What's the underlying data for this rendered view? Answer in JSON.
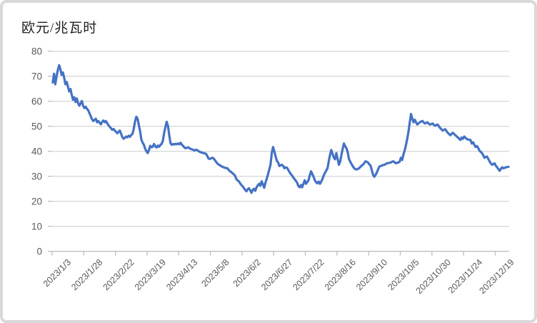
{
  "chart_data": {
    "type": "line",
    "title": "欧元/兆瓦时",
    "line_color": "#4472C4",
    "grid": true,
    "grid_color": "#d9d9d9",
    "axis_color": "#bfbfbf",
    "label_color": "#595959",
    "ylim": [
      0,
      80
    ],
    "y_ticks": [
      0,
      10,
      20,
      30,
      40,
      50,
      60,
      70,
      80
    ],
    "x_labels": [
      "2023/1/3",
      "2023/1/28",
      "2023/2/22",
      "2023/3/19",
      "2023/4/13",
      "2023/5/8",
      "2023/6/2",
      "2023/6/27",
      "2023/7/22",
      "2023/8/16",
      "2023/9/10",
      "2023/10/5",
      "2023/10/30",
      "2023/11/24",
      "2023/12/19"
    ],
    "x_label_interval_days": 25,
    "values": [
      67.5,
      71.0,
      66.8,
      70.0,
      72.5,
      74.4,
      72.9,
      70.6,
      71.5,
      69.5,
      66.8,
      67.7,
      65.8,
      63.9,
      64.9,
      62.5,
      60.6,
      61.6,
      59.7,
      61.1,
      59.2,
      58.2,
      59.2,
      60.1,
      58.2,
      57.3,
      57.8,
      57.0,
      56.4,
      55.2,
      54.0,
      52.8,
      52.1,
      52.6,
      53.0,
      51.6,
      52.1,
      51.4,
      50.8,
      51.8,
      52.3,
      51.6,
      52.1,
      51.2,
      50.4,
      49.8,
      49.2,
      48.6,
      48.9,
      48.3,
      47.8,
      47.2,
      47.8,
      48.3,
      47.0,
      45.6,
      45.0,
      45.4,
      45.9,
      45.6,
      46.2,
      45.8,
      46.5,
      47.0,
      49.0,
      51.9,
      53.8,
      53.0,
      50.5,
      48.0,
      44.6,
      43.4,
      42.6,
      41.0,
      40.0,
      39.3,
      40.5,
      42.2,
      41.6,
      41.8,
      42.9,
      42.0,
      41.5,
      42.3,
      41.8,
      42.5,
      43.0,
      44.2,
      47.4,
      49.8,
      51.8,
      50.2,
      46.4,
      43.2,
      42.6,
      42.9,
      42.7,
      43.0,
      42.8,
      43.1,
      42.8,
      43.4,
      42.6,
      42.1,
      41.5,
      41.2,
      41.4,
      41.6,
      41.2,
      40.9,
      40.8,
      40.5,
      40.3,
      40.6,
      40.5,
      40.1,
      39.8,
      39.6,
      39.4,
      39.3,
      39.2,
      39.0,
      38.2,
      37.1,
      36.9,
      37.2,
      37.4,
      37.2,
      36.5,
      35.8,
      35.1,
      34.7,
      34.4,
      34.1,
      33.8,
      33.6,
      33.4,
      33.3,
      33.2,
      32.5,
      32.0,
      31.7,
      31.2,
      30.8,
      30.2,
      28.9,
      28.3,
      28.0,
      27.2,
      26.5,
      26.0,
      25.3,
      24.5,
      24.0,
      24.8,
      25.2,
      24.3,
      23.4,
      24.6,
      25.0,
      24.2,
      25.6,
      26.4,
      27.0,
      26.2,
      28.0,
      26.8,
      25.4,
      27.4,
      29.0,
      30.8,
      32.6,
      34.6,
      39.3,
      41.7,
      40.0,
      38.0,
      36.2,
      35.5,
      34.1,
      34.4,
      34.6,
      34.2,
      33.2,
      33.6,
      33.4,
      32.6,
      31.7,
      30.9,
      30.3,
      29.5,
      28.9,
      28.2,
      27.5,
      26.1,
      25.6,
      26.5,
      25.6,
      27.0,
      28.4,
      27.0,
      27.7,
      28.4,
      30.3,
      32.0,
      31.0,
      29.8,
      28.4,
      27.6,
      27.2,
      27.9,
      27.0,
      27.8,
      28.9,
      30.3,
      31.3,
      32.3,
      33.2,
      36.0,
      38.5,
      40.5,
      39.0,
      37.4,
      36.8,
      39.3,
      37.0,
      34.6,
      35.8,
      38.5,
      41.0,
      43.1,
      42.0,
      41.2,
      39.5,
      36.9,
      35.8,
      34.9,
      34.0,
      33.3,
      32.9,
      32.7,
      33.0,
      33.2,
      33.8,
      34.3,
      34.6,
      35.2,
      36.0,
      35.8,
      35.5,
      34.8,
      34.3,
      32.5,
      30.6,
      29.8,
      30.6,
      31.5,
      32.8,
      33.9,
      34.1,
      34.3,
      34.5,
      34.6,
      34.9,
      35.2,
      35.3,
      35.4,
      35.5,
      35.8,
      36.0,
      35.6,
      35.2,
      35.4,
      35.5,
      35.8,
      37.4,
      36.5,
      38.8,
      40.3,
      42.5,
      45.0,
      48.0,
      51.5,
      54.9,
      53.0,
      51.6,
      52.6,
      51.5,
      50.7,
      51.2,
      51.6,
      51.9,
      52.1,
      51.5,
      51.1,
      51.4,
      51.6,
      51.0,
      50.7,
      50.9,
      51.1,
      50.6,
      50.2,
      50.5,
      50.7,
      50.0,
      49.3,
      48.8,
      48.3,
      48.6,
      48.8,
      48.1,
      47.4,
      46.9,
      46.4,
      46.9,
      47.4,
      46.9,
      46.4,
      46.0,
      45.5,
      45.0,
      44.5,
      45.5,
      45.0,
      45.9,
      45.4,
      44.9,
      44.7,
      44.6,
      44.5,
      43.1,
      43.6,
      42.6,
      41.7,
      42.1,
      41.4,
      40.3,
      39.8,
      39.3,
      38.4,
      37.4,
      37.7,
      37.9,
      37.0,
      36.0,
      35.2,
      34.6,
      34.9,
      35.2,
      34.2,
      33.6,
      32.9,
      32.2,
      33.0,
      33.6,
      33.2,
      33.4,
      33.6,
      33.7,
      33.8
    ]
  }
}
